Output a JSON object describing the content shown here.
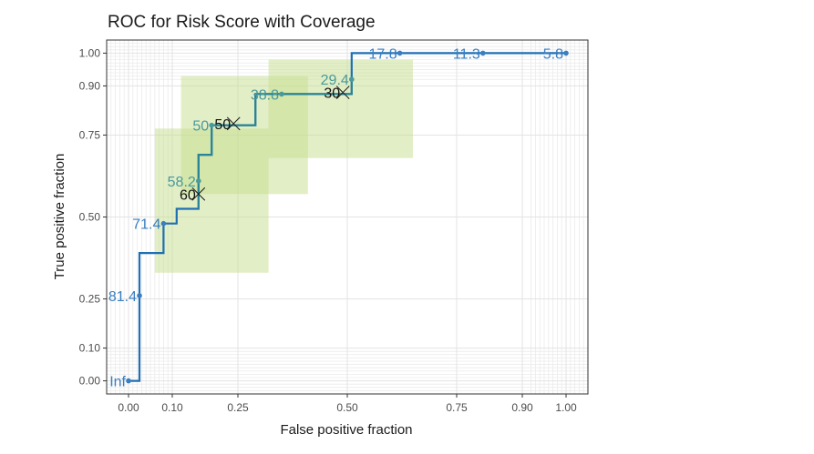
{
  "chart_data": {
    "type": "line",
    "title": "ROC for Risk Score with Coverage",
    "xlabel": "False positive fraction",
    "ylabel": "True positive fraction",
    "xlim": [
      -0.05,
      1.05
    ],
    "ylim": [
      -0.04,
      1.04
    ],
    "x_ticks": [
      0.0,
      0.1,
      0.25,
      0.5,
      0.75,
      0.9,
      1.0
    ],
    "x_tick_labels": [
      "0.00",
      "0.10",
      "0.25",
      "0.50",
      "0.75",
      "0.90",
      "1.00"
    ],
    "y_ticks": [
      0.0,
      0.1,
      0.25,
      0.5,
      0.75,
      0.9,
      1.0
    ],
    "y_tick_labels": [
      "0.00",
      "0.10",
      "0.25",
      "0.50",
      "0.75",
      "0.90",
      "1.00"
    ],
    "minor_grid": [
      -0.04,
      -0.03,
      -0.02,
      -0.01,
      0.01,
      0.02,
      0.03,
      0.04,
      0.05,
      0.06,
      0.07,
      0.08,
      0.09,
      0.92,
      0.93,
      0.94,
      0.95,
      0.96,
      0.97,
      0.98,
      0.99,
      1.01,
      1.02,
      1.03,
      1.04
    ],
    "colors": {
      "curve": "#1f6fb2",
      "curve_mid": "#2e8b8b",
      "band": "#c5dd8e",
      "cut_label_blue": "#3a7ec2",
      "cut_label_teal": "#4a9a9a",
      "marker": "#1a1a1a"
    },
    "series": [
      {
        "name": "ROC curve",
        "points": [
          [
            0.0,
            0.0
          ],
          [
            0.025,
            0.0
          ],
          [
            0.025,
            0.26
          ],
          [
            0.025,
            0.39
          ],
          [
            0.08,
            0.39
          ],
          [
            0.08,
            0.48
          ],
          [
            0.11,
            0.48
          ],
          [
            0.11,
            0.525
          ],
          [
            0.16,
            0.525
          ],
          [
            0.16,
            0.61
          ],
          [
            0.16,
            0.69
          ],
          [
            0.19,
            0.69
          ],
          [
            0.19,
            0.78
          ],
          [
            0.29,
            0.78
          ],
          [
            0.29,
            0.875
          ],
          [
            0.35,
            0.875
          ],
          [
            0.51,
            0.875
          ],
          [
            0.51,
            0.92
          ],
          [
            0.51,
            1.0
          ],
          [
            1.0,
            1.0
          ]
        ]
      }
    ],
    "cutoffs": [
      {
        "label": "Inf",
        "x": 0.0,
        "y": 0.0,
        "color": "#3a7ec2"
      },
      {
        "label": "81.4",
        "x": 0.025,
        "y": 0.26,
        "color": "#3a7ec2"
      },
      {
        "label": "71.4",
        "x": 0.08,
        "y": 0.48,
        "color": "#3a7ec2"
      },
      {
        "label": "58.2",
        "x": 0.16,
        "y": 0.61,
        "color": "#4a9a9a"
      },
      {
        "label": "50",
        "x": 0.19,
        "y": 0.78,
        "color": "#4a9a9a"
      },
      {
        "label": "38.8",
        "x": 0.35,
        "y": 0.875,
        "color": "#4a9a9a"
      },
      {
        "label": "29.4",
        "x": 0.51,
        "y": 0.92,
        "color": "#4a9a9a"
      },
      {
        "label": "17.8",
        "x": 0.62,
        "y": 1.0,
        "color": "#3a7ec2"
      },
      {
        "label": "11.3",
        "x": 0.81,
        "y": 1.0,
        "color": "#3a7ec2"
      },
      {
        "label": "5.8",
        "x": 1.0,
        "y": 1.0,
        "color": "#3a7ec2"
      }
    ],
    "coverage_cutoffs": [
      {
        "label": "60",
        "x": 0.16,
        "y": 0.57,
        "x_range": [
          0.06,
          0.32
        ],
        "y_range": [
          0.33,
          0.77
        ]
      },
      {
        "label": "50",
        "x": 0.24,
        "y": 0.785,
        "x_range": [
          0.12,
          0.41
        ],
        "y_range": [
          0.57,
          0.93
        ]
      },
      {
        "label": "30",
        "x": 0.49,
        "y": 0.88,
        "x_range": [
          0.32,
          0.65
        ],
        "y_range": [
          0.68,
          0.98
        ]
      }
    ]
  }
}
